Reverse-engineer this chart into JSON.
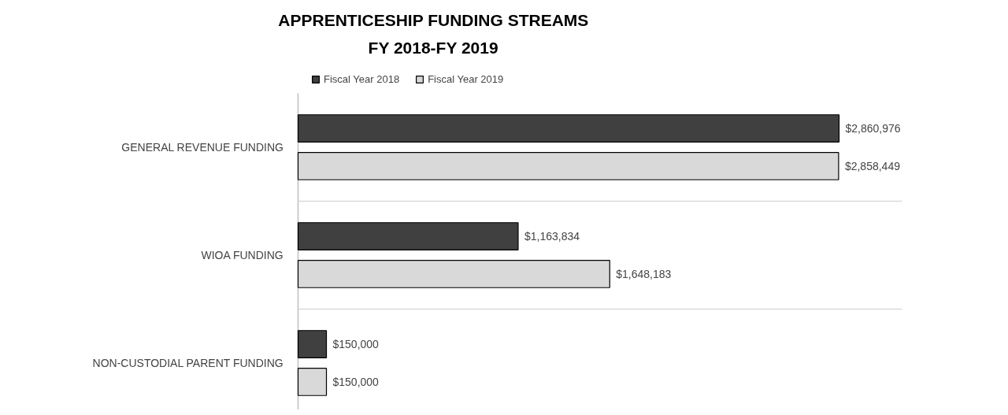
{
  "chart_data": {
    "type": "bar",
    "orientation": "horizontal",
    "title": "APPRENTICESHIP FUNDING STREAMS",
    "subtitle": "FY 2018-FY 2019",
    "categories": [
      "GENERAL REVENUE FUNDING",
      "WIOA FUNDING",
      "NON-CUSTODIAL PARENT FUNDING"
    ],
    "series": [
      {
        "name": "Fiscal Year 2018",
        "color": "#404040",
        "values": [
          2860976,
          1163834,
          150000
        ],
        "value_labels": [
          "$2,860,976",
          "$1,163,834",
          "$150,000"
        ]
      },
      {
        "name": "Fiscal Year 2019",
        "color": "#d9d9d9",
        "values": [
          2858449,
          1648183,
          150000
        ],
        "value_labels": [
          "$2,858,449",
          "$1,648,183",
          "$150,000"
        ]
      }
    ],
    "legend": "top",
    "grid": "y"
  }
}
